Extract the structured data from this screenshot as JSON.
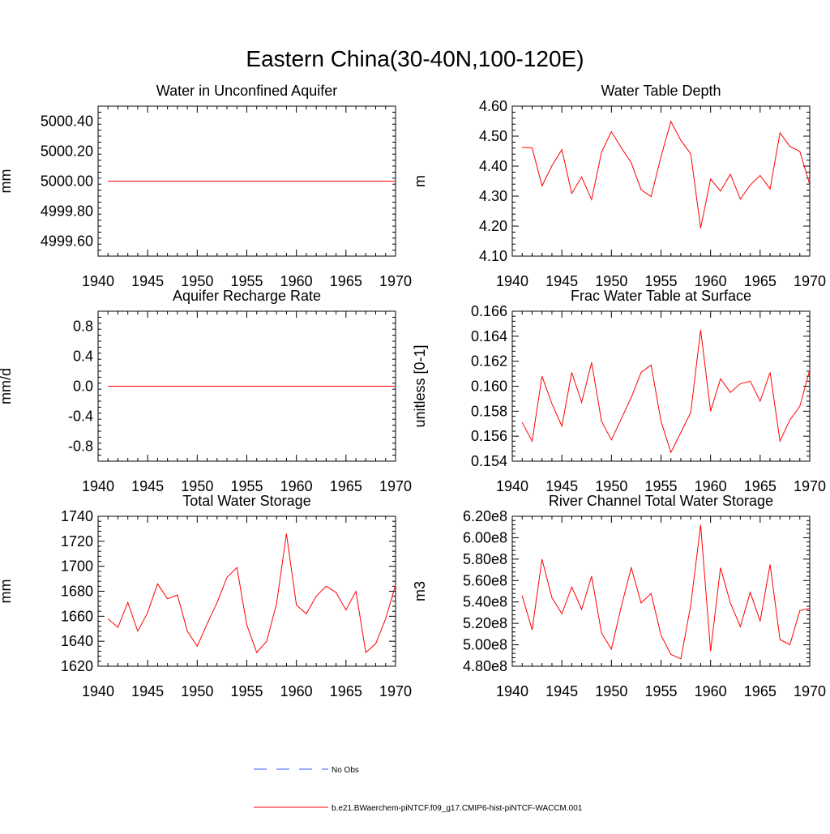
{
  "title": "Eastern China(30-40N,100-120E)",
  "colors": {
    "model": "#ff0000",
    "obs": "#3355ff",
    "axis": "#000000"
  },
  "legend": {
    "obs_label": "No Obs",
    "model_label": "b.e21.BWaerchem-piNTCF.f09_g17.CMIP6-hist-piNTCF-WACCM.001"
  },
  "chart_data": [
    {
      "type": "line",
      "title": "Water in Unconfined Aquifer",
      "ylabel": "mm",
      "xlim": [
        1940,
        1970
      ],
      "ylim": [
        4999.5,
        5000.5
      ],
      "xticks": [
        1940,
        1945,
        1950,
        1955,
        1960,
        1965,
        1970
      ],
      "xtick_labels": [
        "1940",
        "1945",
        "1950",
        "1955",
        "1960",
        "1965",
        "1970"
      ],
      "yticks": [
        4999.6,
        4999.8,
        5000.0,
        5000.2,
        5000.4
      ],
      "ytick_labels": [
        "4999.60",
        "4999.80",
        "5000.00",
        "5000.20",
        "5000.40"
      ],
      "ytick_minor": 0.04,
      "x": [
        1941,
        1942,
        1943,
        1944,
        1945,
        1946,
        1947,
        1948,
        1949,
        1950,
        1951,
        1952,
        1953,
        1954,
        1955,
        1956,
        1957,
        1958,
        1959,
        1960,
        1961,
        1962,
        1963,
        1964,
        1965,
        1966,
        1967,
        1968,
        1969,
        1970
      ],
      "y": [
        5000,
        5000,
        5000,
        5000,
        5000,
        5000,
        5000,
        5000,
        5000,
        5000,
        5000,
        5000,
        5000,
        5000,
        5000,
        5000,
        5000,
        5000,
        5000,
        5000,
        5000,
        5000,
        5000,
        5000,
        5000,
        5000,
        5000,
        5000,
        5000,
        5000
      ]
    },
    {
      "type": "line",
      "title": "Water Table Depth",
      "ylabel": "m",
      "xlim": [
        1940,
        1970
      ],
      "ylim": [
        4.1,
        4.6
      ],
      "xticks": [
        1940,
        1945,
        1950,
        1955,
        1960,
        1965,
        1970
      ],
      "xtick_labels": [
        "1940",
        "1945",
        "1950",
        "1955",
        "1960",
        "1965",
        "1970"
      ],
      "yticks": [
        4.1,
        4.2,
        4.3,
        4.4,
        4.5,
        4.6
      ],
      "ytick_labels": [
        "4.10",
        "4.20",
        "4.30",
        "4.40",
        "4.50",
        "4.60"
      ],
      "ytick_minor": 0.02,
      "x": [
        1941,
        1942,
        1943,
        1944,
        1945,
        1946,
        1947,
        1948,
        1949,
        1950,
        1951,
        1952,
        1953,
        1954,
        1955,
        1956,
        1957,
        1958,
        1959,
        1960,
        1961,
        1962,
        1963,
        1964,
        1965,
        1966,
        1967,
        1968,
        1969,
        1970
      ],
      "y": [
        4.463,
        4.461,
        4.334,
        4.401,
        4.455,
        4.309,
        4.364,
        4.288,
        4.446,
        4.515,
        4.461,
        4.411,
        4.321,
        4.298,
        4.432,
        4.549,
        4.486,
        4.441,
        4.193,
        4.357,
        4.317,
        4.373,
        4.29,
        4.337,
        4.369,
        4.324,
        4.511,
        4.466,
        4.449,
        4.338
      ]
    },
    {
      "type": "line",
      "title": "Aquifer Recharge Rate",
      "ylabel": "mm/d",
      "xlim": [
        1940,
        1970
      ],
      "ylim": [
        -1.0,
        1.0
      ],
      "xticks": [
        1940,
        1945,
        1950,
        1955,
        1960,
        1965,
        1970
      ],
      "xtick_labels": [
        "1940",
        "1945",
        "1950",
        "1955",
        "1960",
        "1965",
        "1970"
      ],
      "yticks": [
        -0.8,
        -0.4,
        0.0,
        0.4,
        0.8
      ],
      "ytick_labels": [
        "-0.8",
        "-0.4",
        "0.0",
        "0.4",
        "0.8"
      ],
      "ytick_minor": 0.08,
      "x": [
        1941,
        1942,
        1943,
        1944,
        1945,
        1946,
        1947,
        1948,
        1949,
        1950,
        1951,
        1952,
        1953,
        1954,
        1955,
        1956,
        1957,
        1958,
        1959,
        1960,
        1961,
        1962,
        1963,
        1964,
        1965,
        1966,
        1967,
        1968,
        1969,
        1970
      ],
      "y": [
        0,
        0,
        0,
        0,
        0,
        0,
        0,
        0,
        0,
        0,
        0,
        0,
        0,
        0,
        0,
        0,
        0,
        0,
        0,
        0,
        0,
        0,
        0,
        0,
        0,
        0,
        0,
        0,
        0,
        0
      ]
    },
    {
      "type": "line",
      "title": "Frac Water Table at Surface",
      "ylabel": "unitless [0-1]",
      "xlim": [
        1940,
        1970
      ],
      "ylim": [
        0.154,
        0.166
      ],
      "xticks": [
        1940,
        1945,
        1950,
        1955,
        1960,
        1965,
        1970
      ],
      "xtick_labels": [
        "1940",
        "1945",
        "1950",
        "1955",
        "1960",
        "1965",
        "1970"
      ],
      "yticks": [
        0.154,
        0.156,
        0.158,
        0.16,
        0.162,
        0.164,
        0.166
      ],
      "ytick_labels": [
        "0.154",
        "0.156",
        "0.158",
        "0.160",
        "0.162",
        "0.164",
        "0.166"
      ],
      "ytick_minor": 0.0004,
      "x": [
        1941,
        1942,
        1943,
        1944,
        1945,
        1946,
        1947,
        1948,
        1949,
        1950,
        1951,
        1952,
        1953,
        1954,
        1955,
        1956,
        1957,
        1958,
        1959,
        1960,
        1961,
        1962,
        1963,
        1964,
        1965,
        1966,
        1967,
        1968,
        1969,
        1970
      ],
      "y": [
        0.1571,
        0.1556,
        0.1608,
        0.1586,
        0.1568,
        0.1611,
        0.1587,
        0.1619,
        0.1572,
        0.1557,
        0.1574,
        0.1591,
        0.1611,
        0.1617,
        0.1572,
        0.1547,
        0.1563,
        0.1579,
        0.1645,
        0.158,
        0.1606,
        0.1595,
        0.1602,
        0.1604,
        0.1588,
        0.1611,
        0.1556,
        0.1573,
        0.1584,
        0.1613
      ]
    },
    {
      "type": "line",
      "title": "Total Water Storage",
      "ylabel": "mm",
      "xlim": [
        1940,
        1970
      ],
      "ylim": [
        1620,
        1740
      ],
      "xticks": [
        1940,
        1945,
        1950,
        1955,
        1960,
        1965,
        1970
      ],
      "xtick_labels": [
        "1940",
        "1945",
        "1950",
        "1955",
        "1960",
        "1965",
        "1970"
      ],
      "yticks": [
        1620,
        1640,
        1660,
        1680,
        1700,
        1720,
        1740
      ],
      "ytick_labels": [
        "1620",
        "1640",
        "1660",
        "1680",
        "1700",
        "1720",
        "1740"
      ],
      "ytick_minor": 4,
      "x": [
        1941,
        1942,
        1943,
        1944,
        1945,
        1946,
        1947,
        1948,
        1949,
        1950,
        1951,
        1952,
        1953,
        1954,
        1955,
        1956,
        1957,
        1958,
        1959,
        1960,
        1961,
        1962,
        1963,
        1964,
        1965,
        1966,
        1967,
        1968,
        1969,
        1970
      ],
      "y": [
        1658,
        1651,
        1671,
        1648,
        1663,
        1686,
        1674,
        1677,
        1648,
        1636,
        1654,
        1671,
        1691,
        1699,
        1653,
        1631,
        1640,
        1670,
        1726,
        1669,
        1662,
        1676,
        1684,
        1679,
        1665,
        1680,
        1631,
        1638,
        1658,
        1685
      ]
    },
    {
      "type": "line",
      "title": "River Channel Total Water Storage",
      "ylabel": "m3",
      "xlim": [
        1940,
        1970
      ],
      "ylim": [
        4.8,
        6.2
      ],
      "yscale_label": "e8",
      "xticks": [
        1940,
        1945,
        1950,
        1955,
        1960,
        1965,
        1970
      ],
      "xtick_labels": [
        "1940",
        "1945",
        "1950",
        "1955",
        "1960",
        "1965",
        "1970"
      ],
      "yticks": [
        4.8,
        5.0,
        5.2,
        5.4,
        5.6,
        5.8,
        6.0,
        6.2
      ],
      "ytick_labels": [
        "4.80e8",
        "5.00e8",
        "5.20e8",
        "5.40e8",
        "5.60e8",
        "5.80e8",
        "6.00e8",
        "6.20e8"
      ],
      "ytick_minor": 0.04,
      "x": [
        1941,
        1942,
        1943,
        1944,
        1945,
        1946,
        1947,
        1948,
        1949,
        1950,
        1951,
        1952,
        1953,
        1954,
        1955,
        1956,
        1957,
        1958,
        1959,
        1960,
        1961,
        1962,
        1963,
        1964,
        1965,
        1966,
        1967,
        1968,
        1969,
        1970
      ],
      "y": [
        5.46,
        5.14,
        5.8,
        5.44,
        5.29,
        5.54,
        5.33,
        5.64,
        5.11,
        4.96,
        5.36,
        5.72,
        5.39,
        5.48,
        5.09,
        4.91,
        4.87,
        5.37,
        6.12,
        4.94,
        5.72,
        5.39,
        5.17,
        5.49,
        5.22,
        5.75,
        5.05,
        5.0,
        5.32,
        5.34
      ]
    }
  ]
}
